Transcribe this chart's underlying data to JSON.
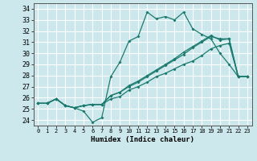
{
  "xlabel": "Humidex (Indice chaleur)",
  "background_color": "#cce8ec",
  "grid_color": "#ffffff",
  "line_color": "#1a7a6e",
  "xlim": [
    -0.5,
    23.5
  ],
  "ylim": [
    23.5,
    34.5
  ],
  "xticks": [
    0,
    1,
    2,
    3,
    4,
    5,
    6,
    7,
    8,
    9,
    10,
    11,
    12,
    13,
    14,
    15,
    16,
    17,
    18,
    19,
    20,
    21,
    22,
    23
  ],
  "yticks": [
    24,
    25,
    26,
    27,
    28,
    29,
    30,
    31,
    32,
    33,
    34
  ],
  "series": [
    [
      25.5,
      25.5,
      25.9,
      25.3,
      25.1,
      24.8,
      23.8,
      24.2,
      27.9,
      29.2,
      31.1,
      31.5,
      33.7,
      33.1,
      33.3,
      33.0,
      33.7,
      32.2,
      31.7,
      31.3,
      30.0,
      29.0,
      27.9,
      27.9
    ],
    [
      25.5,
      25.5,
      25.9,
      25.3,
      25.1,
      25.3,
      25.4,
      25.4,
      25.9,
      26.1,
      26.7,
      27.0,
      27.4,
      27.9,
      28.2,
      28.6,
      29.0,
      29.3,
      29.8,
      30.4,
      30.7,
      30.9,
      27.9,
      27.9
    ],
    [
      25.5,
      25.5,
      25.9,
      25.3,
      25.1,
      25.3,
      25.4,
      25.4,
      26.2,
      26.5,
      27.0,
      27.4,
      27.9,
      28.4,
      28.9,
      29.4,
      29.9,
      30.5,
      31.0,
      31.5,
      31.3,
      31.3,
      27.9,
      27.9
    ],
    [
      25.5,
      25.5,
      25.9,
      25.3,
      25.1,
      25.3,
      25.4,
      25.4,
      26.2,
      26.5,
      27.1,
      27.5,
      28.0,
      28.5,
      29.0,
      29.5,
      30.1,
      30.6,
      31.1,
      31.6,
      31.2,
      31.3,
      27.9,
      27.9
    ]
  ]
}
